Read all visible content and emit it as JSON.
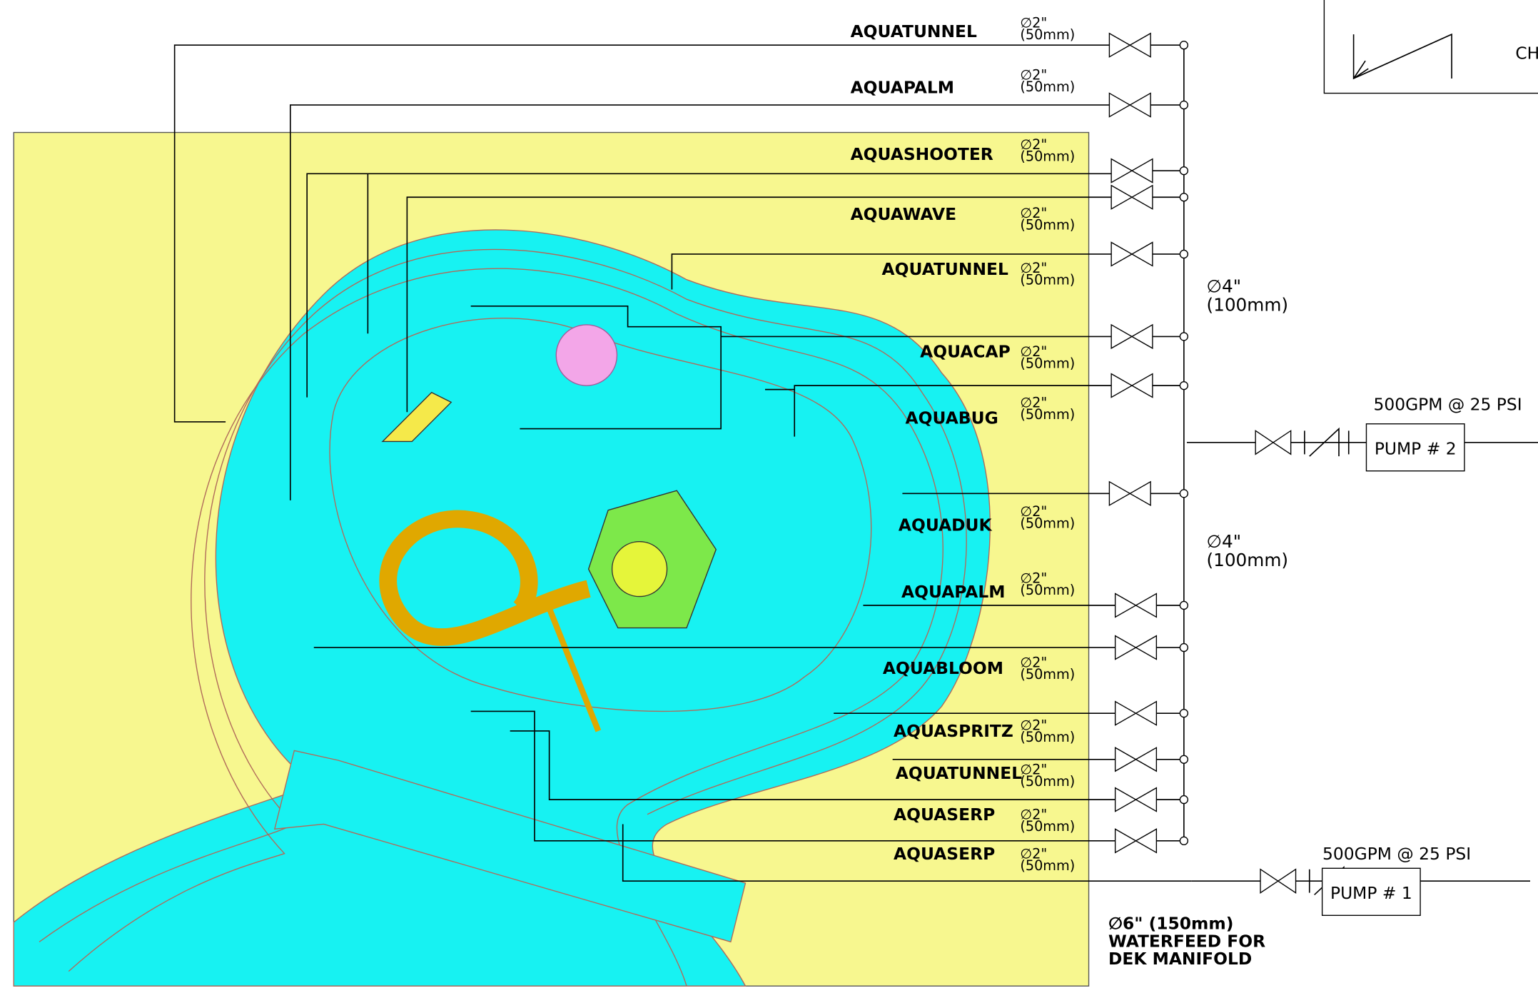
{
  "legend": {
    "text": "CH"
  },
  "feeds": [
    {
      "label": "AQUATUNNEL",
      "size": "∅2\"",
      "metric": "(50mm)"
    },
    {
      "label": "AQUAPALM",
      "size": "∅2\"",
      "metric": "(50mm)"
    },
    {
      "label": "AQUASHOOTER",
      "size": "∅2\"",
      "metric": "(50mm)"
    },
    {
      "label": "AQUAWAVE",
      "size": "∅2\"",
      "metric": "(50mm)"
    },
    {
      "label": "AQUATUNNEL",
      "size": "∅2\"",
      "metric": "(50mm)"
    },
    {
      "label": "AQUACAP",
      "size": "∅2\"",
      "metric": "(50mm)"
    },
    {
      "label": "AQUABUG",
      "size": "∅2\"",
      "metric": "(50mm)"
    },
    {
      "label": "AQUADUK",
      "size": "∅2\"",
      "metric": "(50mm)"
    },
    {
      "label": "AQUAPALM",
      "size": "∅2\"",
      "metric": "(50mm)"
    },
    {
      "label": "AQUABLOOM",
      "size": "∅2\"",
      "metric": "(50mm)"
    },
    {
      "label": "AQUASPRITZ",
      "size": "∅2\"",
      "metric": "(50mm)"
    },
    {
      "label": "AQUATUNNEL",
      "size": "∅2\"",
      "metric": "(50mm)"
    },
    {
      "label": "AQUASERP",
      "size": "∅2\"",
      "metric": "(50mm)"
    },
    {
      "label": "AQUASERP",
      "size": "∅2\"",
      "metric": "(50mm)"
    }
  ],
  "mains": [
    {
      "size": "∅4\"",
      "metric": "(100mm)"
    },
    {
      "size": "∅4\"",
      "metric": "(100mm)"
    }
  ],
  "pumps": [
    {
      "label": "PUMP # 2",
      "rating": "500GPM @ 25 PSI"
    },
    {
      "label": "PUMP # 1",
      "rating": "500GPM @ 25 PSI"
    }
  ],
  "waterfeed": {
    "lines": [
      "∅6\" (150mm)",
      "WATERFEED FOR",
      "DEK MANIFOLD"
    ]
  }
}
